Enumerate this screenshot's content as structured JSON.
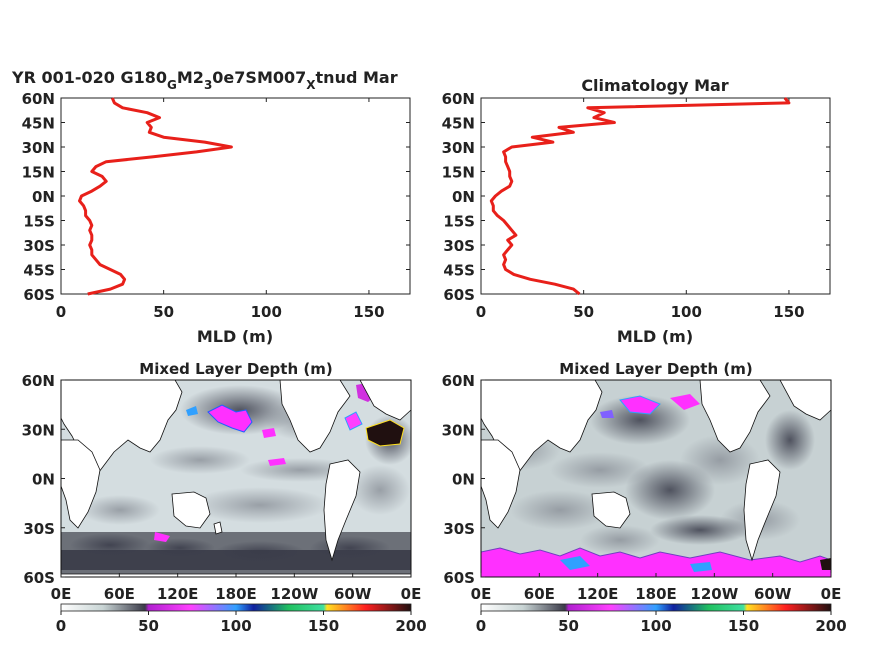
{
  "chart_data": [
    {
      "type": "line",
      "title_main": "YR 001-020 G180",
      "title_parts": [
        {
          "text": "YR 001-020 G180",
          "sub": false
        },
        {
          "text": "G",
          "sub": true
        },
        {
          "text": "M2",
          "sub": false
        },
        {
          "text": "3",
          "sub": true
        },
        {
          "text": "0e7SM007",
          "sub": false
        },
        {
          "text": "X",
          "sub": true
        },
        {
          "text": "tnud Mar",
          "sub": false
        }
      ],
      "xlabel": "MLD (m)",
      "xlim": [
        0,
        170
      ],
      "xticks": [
        "0",
        "50",
        "100",
        "150"
      ],
      "ylim": [
        -60,
        60
      ],
      "yticks": [
        "60N",
        "45N",
        "30N",
        "15N",
        "0N",
        "15S",
        "30S",
        "45S",
        "60S"
      ],
      "color": "#e8201a",
      "series": [
        {
          "y": [
            -60,
            -57,
            -54,
            -51,
            -48,
            -45,
            -42,
            -39,
            -36,
            -33,
            -30,
            -27,
            -24,
            -21,
            -18,
            -15,
            -12,
            -9,
            -6,
            -3,
            0,
            3,
            6,
            9,
            12,
            15,
            18,
            21,
            24,
            27,
            30,
            33,
            36,
            39,
            42,
            45,
            48,
            51,
            54,
            57,
            60
          ],
          "x": [
            13,
            24,
            30,
            31,
            29,
            24,
            19,
            17,
            15,
            15,
            14,
            15,
            15,
            14,
            15,
            14,
            12,
            12,
            11,
            9,
            10,
            15,
            19,
            22,
            20,
            15,
            17,
            22,
            45,
            66,
            83,
            70,
            50,
            43,
            44,
            42,
            48,
            42,
            30,
            26,
            25
          ]
        }
      ]
    },
    {
      "type": "line",
      "title": "Climatology Mar",
      "xlabel": "MLD (m)",
      "xlim": [
        0,
        170
      ],
      "xticks": [
        "0",
        "50",
        "100",
        "150"
      ],
      "ylim": [
        -60,
        60
      ],
      "yticks": [
        "60N",
        "45N",
        "30N",
        "15N",
        "0N",
        "15S",
        "30S",
        "45S",
        "60S"
      ],
      "color": "#e8201a",
      "series": [
        {
          "y": [
            -60,
            -57,
            -54,
            -51,
            -48,
            -45,
            -42,
            -39,
            -36,
            -33,
            -30,
            -27,
            -24,
            -21,
            -18,
            -15,
            -12,
            -9,
            -6,
            -3,
            0,
            3,
            6,
            9,
            12,
            15,
            18,
            21,
            24,
            27,
            30,
            33,
            36,
            39,
            42,
            45,
            48,
            51,
            54,
            57,
            60
          ],
          "x": [
            48,
            45,
            36,
            24,
            16,
            12,
            11,
            12,
            11,
            13,
            15,
            13,
            17,
            15,
            13,
            11,
            8,
            6,
            6,
            5,
            7,
            10,
            14,
            15,
            14,
            14,
            13,
            12,
            12,
            11,
            15,
            35,
            25,
            45,
            38,
            65,
            55,
            60,
            52,
            150,
            148
          ]
        }
      ]
    },
    {
      "type": "heatmap",
      "title": "Mixed Layer Depth (m)",
      "xticks": [
        "0E",
        "60E",
        "120E",
        "180E",
        "120W",
        "60W",
        "0E"
      ],
      "yticks": [
        "60N",
        "30N",
        "0N",
        "30S",
        "60S"
      ],
      "colorbar_ticks": [
        "0",
        "50",
        "100",
        "150",
        "200"
      ],
      "clim": [
        0,
        200
      ]
    },
    {
      "type": "heatmap",
      "title": "Mixed Layer Depth (m)",
      "xticks": [
        "0E",
        "60E",
        "120E",
        "180E",
        "120W",
        "60W",
        "0E"
      ],
      "yticks": [
        "60N",
        "30N",
        "0N",
        "30S",
        "60S"
      ],
      "colorbar_ticks": [
        "0",
        "50",
        "100",
        "150",
        "200"
      ],
      "clim": [
        0,
        200
      ]
    }
  ]
}
